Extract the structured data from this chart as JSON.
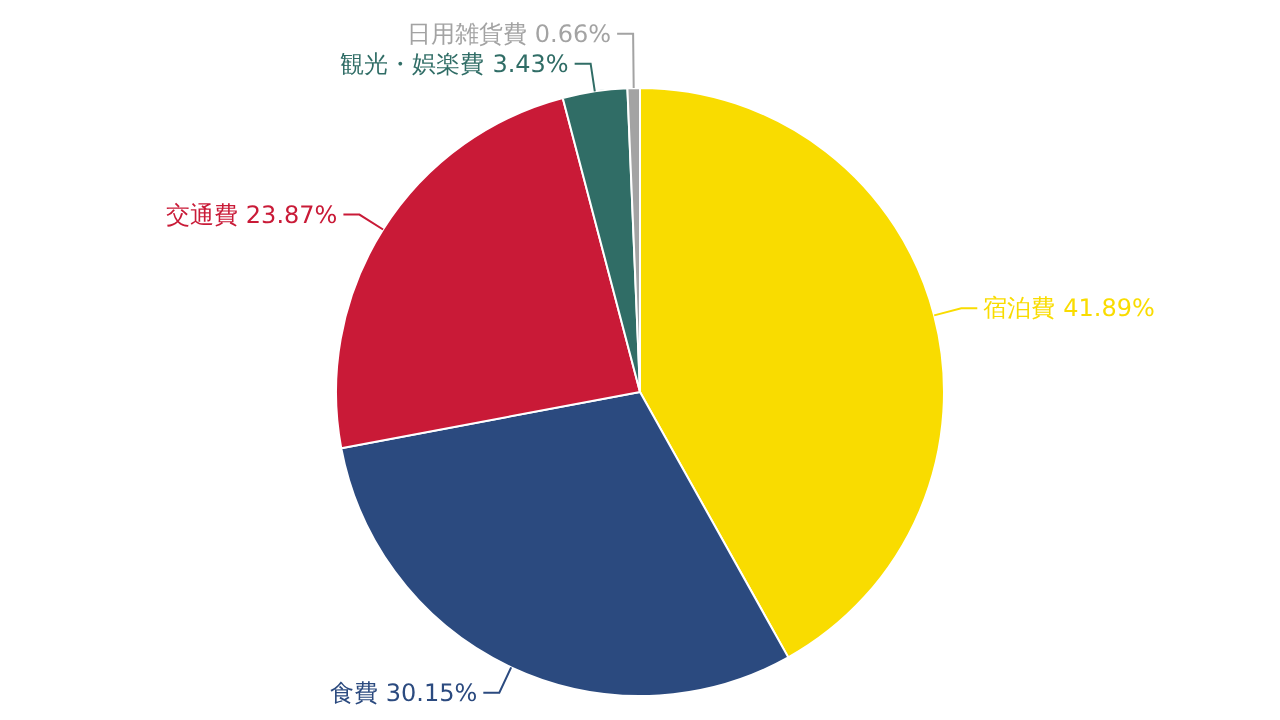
{
  "chart_data": {
    "type": "pie",
    "categories": [
      "宿泊費",
      "食費",
      "交通費",
      "観光・娯楽費",
      "日用雑貨費"
    ],
    "values": [
      41.89,
      30.15,
      23.87,
      3.43,
      0.66
    ],
    "value_labels": [
      "41.89%",
      "30.15%",
      "23.87%",
      "3.43%",
      "0.66%"
    ],
    "colors": [
      "#f9dc00",
      "#2b4a7f",
      "#c91a37",
      "#306d66",
      "#a3a3a3"
    ],
    "legend": false
  }
}
